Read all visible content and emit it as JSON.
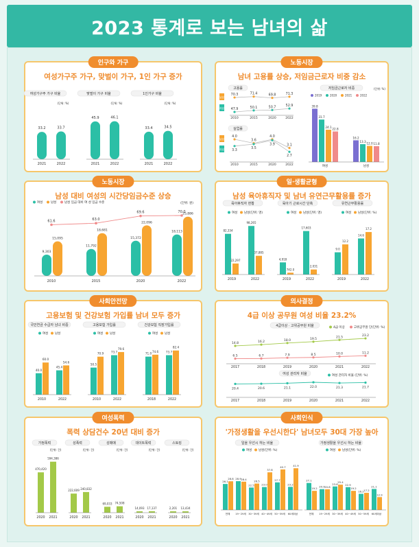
{
  "page_title": "2023 통계로 보는 남녀의 삶",
  "panels": [
    {
      "tag": "인구와 가구",
      "title": "여성가구주 가구, 맞벌이 가구, 1인 가구 증가"
    },
    {
      "tag": "노동시장",
      "title": "남녀 고용률 상승, 저임금근로자 비중 감소"
    },
    {
      "tag": "노동시장",
      "title": "남성 대비 여성의 시간당임금수준 상승"
    },
    {
      "tag": "일·생활균형",
      "title": "남성 육아휴직자 및 남녀 유연근무활용률 증가"
    },
    {
      "tag": "사회안전망",
      "title": "고용보험 및 건강보험 가입률 남녀 모두 증가"
    },
    {
      "tag": "의사결정",
      "title": "4급 이상 공무원 여성 비율 23.2%"
    },
    {
      "tag": "여성폭력",
      "title": "폭력 상담건수 20년 대비 증가"
    },
    {
      "tag": "사회인식",
      "title": "'가정생활을 우선시한다' 남녀모두 30대 가장 높아"
    }
  ],
  "chart_data": [
    {
      "type": "bar",
      "id": "households",
      "groups": [
        {
          "label": "여성가구주 가구 비율",
          "unit": "(단위: %)",
          "categories": [
            "2021",
            "2022"
          ],
          "values": [
            33.2,
            33.7
          ]
        },
        {
          "label": "맞벌이 가구 비율",
          "unit": "(단위: %)",
          "categories": [
            "2021",
            "2022"
          ],
          "values": [
            45.9,
            46.1
          ]
        },
        {
          "label": "1인가구 비율",
          "unit": "(단위: %)",
          "categories": [
            "2021",
            "2022"
          ],
          "values": [
            33.4,
            34.5
          ]
        }
      ],
      "ylim": [
        0,
        60
      ]
    },
    {
      "type": "line",
      "id": "employment",
      "label": "고용률",
      "categories": [
        "2010",
        "2015",
        "2020",
        "2022"
      ],
      "series": [
        {
          "name": "남성",
          "values": [
            70.3,
            71.4,
            69.8,
            71.3
          ]
        },
        {
          "name": "여성",
          "values": [
            47.9,
            50.1,
            50.7,
            52.9
          ]
        }
      ]
    },
    {
      "type": "line",
      "id": "unemployment",
      "label": "실업률",
      "categories": [
        "2010",
        "2015",
        "2020",
        "2022"
      ],
      "series": [
        {
          "name": "남성",
          "values": [
            4.0,
            3.6,
            4.0,
            3.1
          ]
        },
        {
          "name": "여성",
          "values": [
            3.3,
            3.5,
            3.9,
            2.7
          ]
        }
      ]
    },
    {
      "type": "bar",
      "id": "lowwage",
      "label": "저임금근로자 비중",
      "unit": "(단위: %)",
      "categories": [
        "여성",
        "남성"
      ],
      "series": [
        {
          "name": "2019",
          "values": [
            39.8,
            16.2
          ]
        },
        {
          "name": "2020",
          "values": [
            31.7,
            13.3
          ]
        },
        {
          "name": "2021",
          "values": [
            24.1,
            12.0
          ]
        },
        {
          "name": "2022",
          "values": [
            22.8,
            11.8
          ]
        }
      ]
    },
    {
      "type": "bar",
      "id": "wage",
      "unit": "(단위: 원)",
      "categories": [
        "2010",
        "2015",
        "2020",
        "2022"
      ],
      "series": [
        {
          "name": "여성",
          "values": [
            9303,
            11792,
            15372,
            18113
          ]
        },
        {
          "name": "남성",
          "values": [
            15095,
            18681,
            22096,
            25886
          ]
        }
      ],
      "line": {
        "name": "남성 임금 대비 여 성 임금 수준",
        "values": [
          61.6,
          63.0,
          69.6,
          70.0
        ]
      },
      "ylim": [
        0,
        30000
      ]
    },
    {
      "type": "bar",
      "id": "parental",
      "groups": [
        {
          "label": "육아휴직자 현황",
          "unit": "(단위: 명)",
          "categories": [
            "2019",
            "2022"
          ],
          "series": [
            {
              "name": "여성",
              "values": [
                82334,
                98265
              ]
            },
            {
              "name": "남성",
              "values": [
                22297,
                37885
              ]
            }
          ],
          "ylim": [
            0,
            100000
          ]
        },
        {
          "label": "육아기 근로시간 단축",
          "unit": "(단위: 명)",
          "categories": [
            "2019",
            "2022"
          ],
          "series": [
            {
              "name": "여성",
              "values": [
                4918,
                17603
              ]
            },
            {
              "name": "남성",
              "values": [
                742,
                2031
              ]
            }
          ],
          "ylim": [
            0,
            20000
          ]
        },
        {
          "label": "유연근무활용률",
          "unit": "(단위: %)",
          "categories": [
            "2019",
            "2022"
          ],
          "series": [
            {
              "name": "여성",
              "values": [
                9.0,
                14.6
              ]
            },
            {
              "name": "남성",
              "values": [
                12.2,
                17.2
              ]
            }
          ],
          "ylim": [
            0,
            20
          ]
        }
      ]
    },
    {
      "type": "bar",
      "id": "insurance",
      "groups": [
        {
          "label": "국민연금 수급자 남녀 비중",
          "categories": [
            "2010",
            "2022"
          ],
          "series": [
            {
              "name": "여성",
              "values": [
                40.0,
                45.4
              ]
            },
            {
              "name": "남성",
              "values": [
                60.0,
                54.6
              ]
            }
          ]
        },
        {
          "label": "고용보험 가입률",
          "categories": [
            "2010",
            "2022"
          ],
          "series": [
            {
              "name": "여성",
              "values": [
                50.5,
                73.7
              ]
            },
            {
              "name": "남성",
              "values": [
                70.9,
                79.6
              ]
            }
          ]
        },
        {
          "label": "건강보험 직장가입률",
          "categories": [
            "2018",
            "2022"
          ],
          "series": [
            {
              "name": "여성",
              "values": [
                71.0,
                73.7
              ]
            },
            {
              "name": "남성",
              "values": [
                74.6,
                82.4
              ]
            }
          ]
        }
      ],
      "ylim": [
        0,
        100
      ]
    },
    {
      "type": "line",
      "id": "gov",
      "label": "4급이상 · 고위공무원 비율",
      "categories": [
        "2017",
        "2018",
        "2019",
        "2020",
        "2021",
        "2022"
      ],
      "series": [
        {
          "name": "4급 이상",
          "values": [
            14.8,
            16.2,
            18.0,
            19.5,
            21.5,
            23.2
          ]
        },
        {
          "name": "고위공무원 단(단위: %)",
          "values": [
            6.5,
            6.7,
            7.9,
            8.5,
            10.0,
            11.2
          ]
        }
      ]
    },
    {
      "type": "line",
      "id": "managers",
      "label": "여성 관리자 비율",
      "categories": [
        "2017",
        "2018",
        "2019",
        "2020",
        "2021",
        "2022"
      ],
      "series": [
        {
          "name": "여성 관리자 비율 (단위: %)",
          "values": [
            20.4,
            20.6,
            21.1,
            22.0,
            21.3,
            21.7
          ]
        }
      ]
    },
    {
      "type": "bar",
      "id": "violence",
      "groups": [
        {
          "label": "가정폭력",
          "unit": "(단위: 건)",
          "categories": [
            "2020",
            "2021"
          ],
          "values": [
            470420,
            594386
          ]
        },
        {
          "label": "성폭력",
          "unit": "(단위: 건)",
          "categories": [
            "2020",
            "2021"
          ],
          "values": [
            222609,
            240832
          ]
        },
        {
          "label": "성매매",
          "unit": "(단위: 건)",
          "categories": [
            "2020",
            "2021"
          ],
          "values": [
            69033,
            74508
          ]
        },
        {
          "label": "데이트폭력",
          "unit": "(단위: 건)",
          "categories": [
            "2020",
            "2021"
          ],
          "values": [
            14093,
            17137
          ]
        },
        {
          "label": "스토킹",
          "unit": "(단위: 건)",
          "categories": [
            "2020",
            "2021"
          ],
          "values": [
            2201,
            13434
          ]
        }
      ]
    },
    {
      "type": "bar",
      "id": "perception",
      "groups": [
        {
          "label": "일을 우선시 하는 비율",
          "unit": "(단위: %)",
          "categories": [
            "전체",
            "19~29세",
            "30~39세",
            "40~49세",
            "50~59세",
            "60세이상"
          ],
          "series": [
            {
              "name": "여성",
              "values": [
                26.1,
                28.9,
                22.5,
                23.0,
                27.7,
                23.2
              ]
            },
            {
              "name": "남성",
              "values": [
                28.8,
                28.4,
                26.5,
                37.8,
                40.7,
                41.9
              ]
            }
          ]
        },
        {
          "label": "가정생활을 우선시 하는 비율",
          "unit": "(단위: %)",
          "categories": [
            "전체",
            "19~29세",
            "30~39세",
            "40~49세",
            "50~59세",
            "60세이상"
          ],
          "series": [
            {
              "name": "여성",
              "values": [
                27.1,
                20.9,
                23.6,
                22.9,
                16.2,
                21.1
              ]
            },
            {
              "name": "남성",
              "values": [
                19.2,
                20.8,
                25.4,
                19.2,
                17.2,
                12.9
              ]
            }
          ]
        }
      ]
    }
  ]
}
